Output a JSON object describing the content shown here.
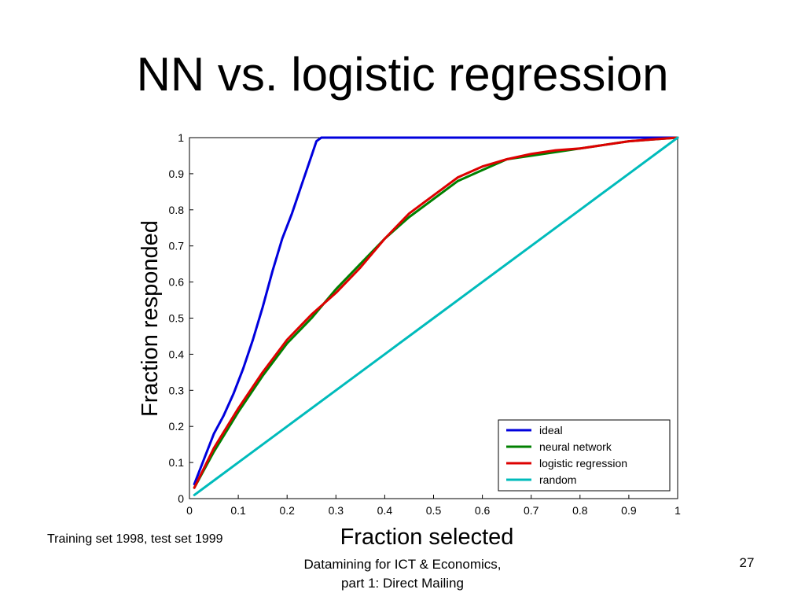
{
  "slide": {
    "title": "NN vs. logistic regression",
    "caption": "Training set 1998, test set 1999",
    "footer_line1": "Datamining for ICT & Economics,",
    "footer_line2": "part 1: Direct Mailing",
    "page_number": "27"
  },
  "chart_data": {
    "type": "line",
    "xlabel": "Fraction selected",
    "ylabel": "Fraction responded",
    "xlim": [
      0,
      1
    ],
    "ylim": [
      0,
      1
    ],
    "xticks": [
      "0",
      "0.1",
      "0.2",
      "0.3",
      "0.4",
      "0.5",
      "0.6",
      "0.7",
      "0.8",
      "0.9",
      "1"
    ],
    "yticks": [
      "0",
      "0.1",
      "0.2",
      "0.3",
      "0.4",
      "0.5",
      "0.6",
      "0.7",
      "0.8",
      "0.9",
      "1"
    ],
    "grid": true,
    "legend_position": "bottom-right",
    "series": [
      {
        "name": "ideal",
        "color": "#0000dd",
        "x": [
          0.01,
          0.03,
          0.05,
          0.07,
          0.09,
          0.11,
          0.13,
          0.15,
          0.17,
          0.19,
          0.21,
          0.23,
          0.25,
          0.26,
          0.27,
          0.3,
          0.4,
          0.5,
          0.6,
          0.7,
          0.8,
          0.9,
          1.0
        ],
        "y": [
          0.04,
          0.11,
          0.18,
          0.23,
          0.29,
          0.36,
          0.44,
          0.53,
          0.63,
          0.72,
          0.79,
          0.87,
          0.95,
          0.99,
          1.0,
          1.0,
          1.0,
          1.0,
          1.0,
          1.0,
          1.0,
          1.0,
          1.0
        ]
      },
      {
        "name": "neural network",
        "color": "#008000",
        "x": [
          0.01,
          0.05,
          0.1,
          0.15,
          0.2,
          0.25,
          0.3,
          0.35,
          0.4,
          0.45,
          0.5,
          0.55,
          0.6,
          0.65,
          0.7,
          0.75,
          0.8,
          0.85,
          0.9,
          0.95,
          1.0
        ],
        "y": [
          0.03,
          0.13,
          0.24,
          0.34,
          0.43,
          0.5,
          0.58,
          0.65,
          0.72,
          0.78,
          0.83,
          0.88,
          0.91,
          0.94,
          0.95,
          0.96,
          0.97,
          0.98,
          0.99,
          0.995,
          1.0
        ]
      },
      {
        "name": "logistic regression",
        "color": "#dd0000",
        "x": [
          0.01,
          0.05,
          0.1,
          0.15,
          0.2,
          0.25,
          0.3,
          0.35,
          0.4,
          0.45,
          0.5,
          0.55,
          0.6,
          0.65,
          0.7,
          0.75,
          0.8,
          0.85,
          0.9,
          0.95,
          1.0
        ],
        "y": [
          0.03,
          0.14,
          0.25,
          0.35,
          0.44,
          0.51,
          0.57,
          0.64,
          0.72,
          0.79,
          0.84,
          0.89,
          0.92,
          0.94,
          0.955,
          0.965,
          0.97,
          0.98,
          0.99,
          0.995,
          1.0
        ]
      },
      {
        "name": "random",
        "color": "#00bbbb",
        "x": [
          0.01,
          0.05,
          0.1,
          0.2,
          0.3,
          0.4,
          0.5,
          0.6,
          0.7,
          0.8,
          0.9,
          1.0
        ],
        "y": [
          0.01,
          0.05,
          0.1,
          0.2,
          0.3,
          0.4,
          0.5,
          0.6,
          0.7,
          0.8,
          0.9,
          1.0
        ]
      }
    ]
  }
}
